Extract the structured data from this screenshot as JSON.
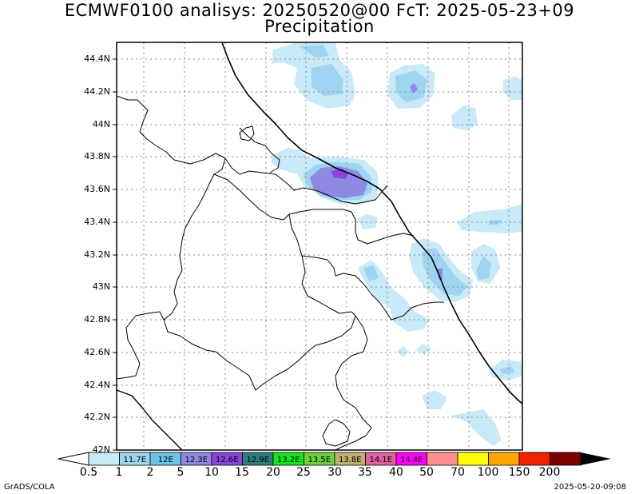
{
  "title_line1": "ECMWF0100 analisys: 20250520@00 FcT: 2025-05-23+09",
  "title_line2": "Precipitation",
  "lat_labels": [
    "44.4N",
    "44.2N",
    "44N",
    "43.8N",
    "43.6N",
    "43.4N",
    "43.2N",
    "43N",
    "42.8N",
    "42.6N",
    "42.4N",
    "42.2N",
    "42N"
  ],
  "colorbar": {
    "boundaries": [
      "0.5",
      "1",
      "2",
      "5",
      "10",
      "15",
      "20",
      "25",
      "30",
      "35",
      "40",
      "50",
      "70",
      "100",
      "150",
      "200"
    ],
    "colors": [
      "#c8e9f7",
      "#9ed4ef",
      "#6ec2e6",
      "#8f88e4",
      "#8a45dd",
      "#2f7c7c",
      "#11e61f",
      "#6cd03b",
      "#bfb06f",
      "#e060a0",
      "#ff00ff",
      "#ff8f8f",
      "#ffff00",
      "#ffa500",
      "#ee2200",
      "#7a0000"
    ],
    "embedded_labels": [
      "11.7E",
      "12E",
      "12.3E",
      "12.6E",
      "12.9E",
      "13.2E",
      "13.5E",
      "13.8E",
      "14.1E",
      "14.4E"
    ]
  },
  "footer_left": "GrADS/COLA",
  "footer_right": "2025-05-20-09:08"
}
